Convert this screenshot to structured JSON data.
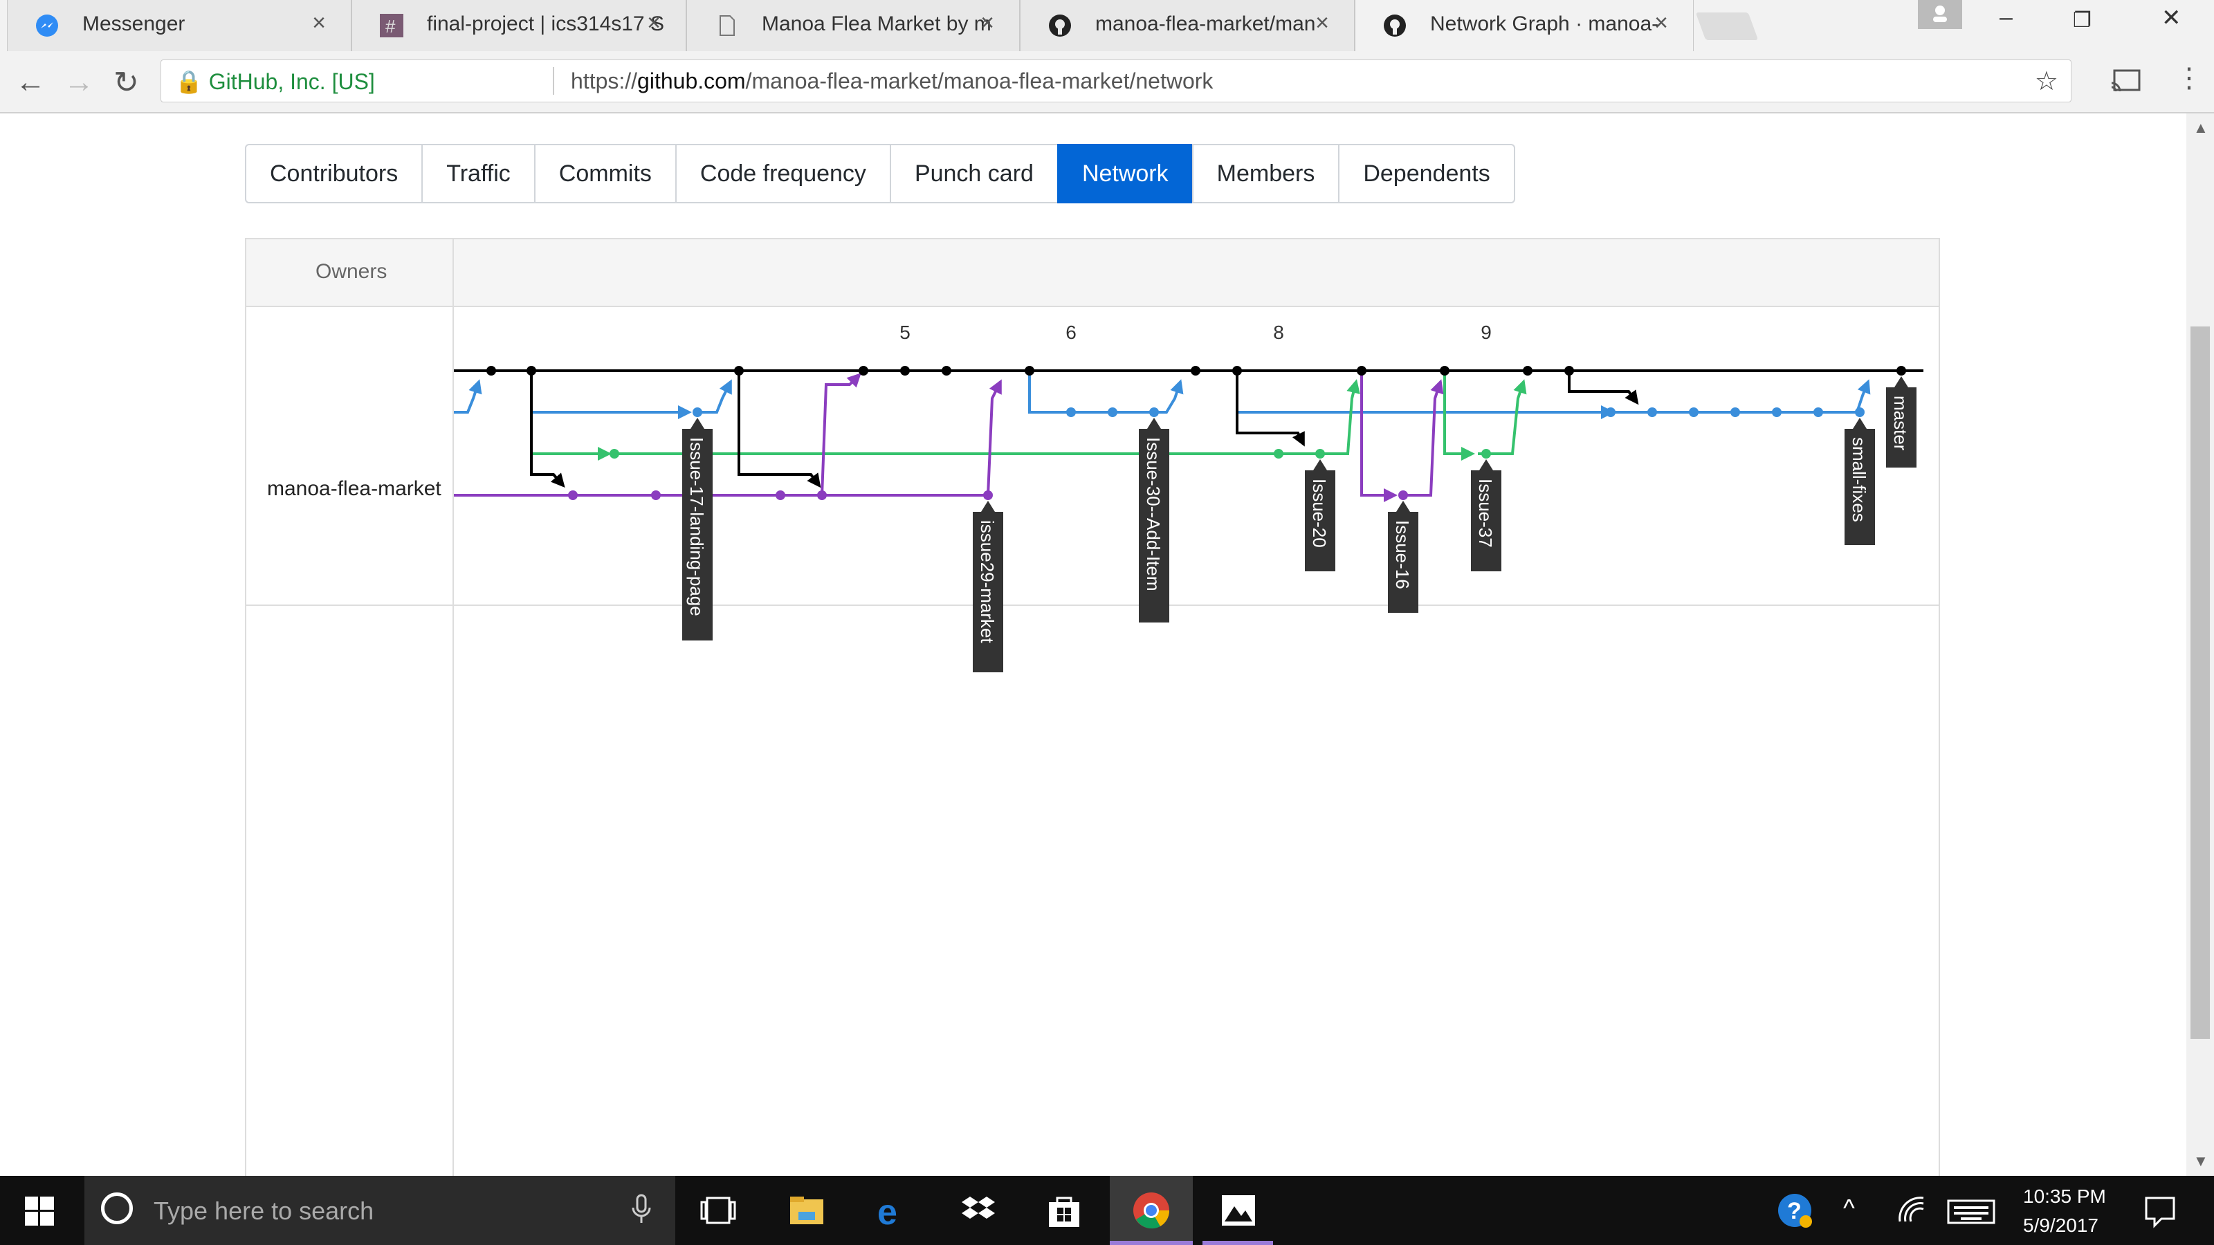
{
  "browser": {
    "tabs": [
      {
        "title": "Messenger",
        "icon": "messenger-icon"
      },
      {
        "title": "final-project | ics314s17 S",
        "icon": "slack-hash-icon"
      },
      {
        "title": "Manoa Flea Market by m",
        "icon": "document-icon"
      },
      {
        "title": "manoa-flea-market/man",
        "icon": "github-icon"
      },
      {
        "title": "Network Graph · manoa-",
        "icon": "github-icon"
      }
    ],
    "secure_label": "GitHub, Inc. [US]",
    "url_scheme": "https://",
    "url_host": "github.com",
    "url_path": "/manoa-flea-market/manoa-flea-market/network"
  },
  "subnav": {
    "items": [
      "Contributors",
      "Traffic",
      "Commits",
      "Code frequency",
      "Punch card",
      "Network",
      "Members",
      "Dependents"
    ],
    "selected": "Network"
  },
  "graph": {
    "owners_header": "Owners",
    "owner": "manoa-flea-market",
    "date_labels": [
      "5",
      "6",
      "8",
      "9"
    ],
    "branch_colors": {
      "master": "#000000",
      "blue": "#3a8edb",
      "green": "#35c26d",
      "purple": "#8b3dbf"
    },
    "branches": [
      "Issue-17-landing-page",
      "issue29-market",
      "Issue-30--Add-Item",
      "Issue-20",
      "Issue-16",
      "Issue-37",
      "small-fixes",
      "master"
    ]
  },
  "taskbar": {
    "search_placeholder": "Type here to search",
    "time": "10:35 PM",
    "date": "5/9/2017"
  }
}
